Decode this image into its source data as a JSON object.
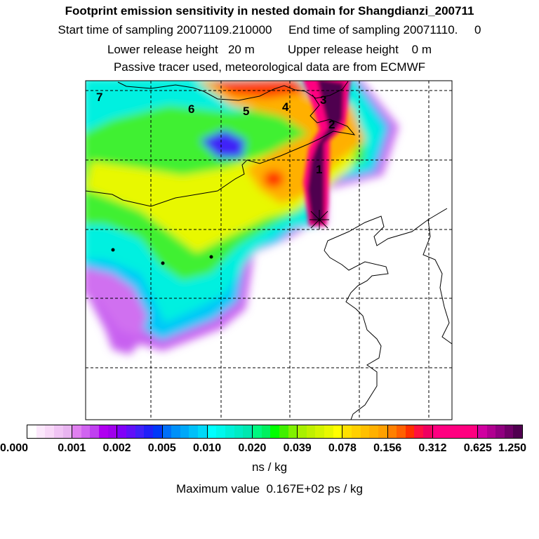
{
  "header": {
    "title": "Footprint emission sensitivity in nested domain for Shangdianzi_200711",
    "line2": "Start time of sampling 20071109.210000     End time of sampling 20071110.     0",
    "line3": "Lower release height   20 m          Upper release height    0 m",
    "line4": "Passive tracer used, meteorological data are from ECMWF"
  },
  "map": {
    "site_labels": [
      "1",
      "2",
      "3",
      "4",
      "5",
      "6",
      "7"
    ],
    "receptor_marker": "star-icon",
    "border_color": "#000000"
  },
  "colorbar": {
    "ticks": [
      "0.000",
      "0.001",
      "0.002",
      "0.005",
      "0.010",
      "0.020",
      "0.039",
      "0.078",
      "0.156",
      "0.312",
      "0.625",
      "1.250"
    ],
    "segments": [
      [
        "#ffffff",
        "#fce8fc",
        "#f8d8f8",
        "#f0c4f4",
        "#e8b4f0"
      ],
      [
        "#e080f0",
        "#d064f0",
        "#c040f0",
        "#b000f0",
        "#a000ec"
      ],
      [
        "#8000f8",
        "#6010f8",
        "#4020f8",
        "#2020f8",
        "#0038f8"
      ],
      [
        "#0070f8",
        "#0090f8",
        "#00a8f8",
        "#00c0f8",
        "#00d8f8"
      ],
      [
        "#00ffff",
        "#00f8ec",
        "#00f0d8",
        "#00ecc4",
        "#00e8b0"
      ],
      [
        "#00f880",
        "#00f060",
        "#00ff00",
        "#40f000",
        "#80f000"
      ],
      [
        "#a8f000",
        "#c0f000",
        "#d4f400",
        "#e8f800",
        "#ffff00"
      ],
      [
        "#ffe000",
        "#ffd000",
        "#ffc000",
        "#ffb000",
        "#ffa000"
      ],
      [
        "#ff8000",
        "#ff6000",
        "#ff3000",
        "#ff1040",
        "#f00060"
      ],
      [
        "#ff0080",
        "#ff0080",
        "#ff0080",
        "#ff0080",
        "#ff0080"
      ],
      [
        "#d000a0",
        "#b00090",
        "#900080",
        "#700068",
        "#500050"
      ]
    ],
    "unit": "ns / kg",
    "max_value": "Maximum value  0.167E+02 ps / kg"
  }
}
